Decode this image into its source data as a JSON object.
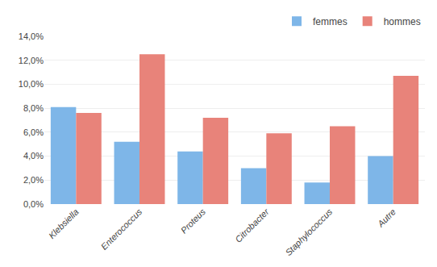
{
  "chart_data": {
    "type": "bar",
    "categories": [
      "Klebsiella",
      "Enterococcus",
      "Proteus",
      "Citrobacter",
      "Staphylococcus",
      "Autre"
    ],
    "series": [
      {
        "name": "femmes",
        "color": "#7EB6E8",
        "values": [
          0.081,
          0.052,
          0.044,
          0.03,
          0.018,
          0.04
        ]
      },
      {
        "name": "hommes",
        "color": "#E8837A",
        "values": [
          0.076,
          0.125,
          0.072,
          0.059,
          0.065,
          0.107
        ]
      }
    ],
    "ylim": [
      0,
      0.14
    ],
    "yticks": [
      {
        "value": 0.0,
        "label": "0,0%"
      },
      {
        "value": 0.02,
        "label": "2,0%"
      },
      {
        "value": 0.04,
        "label": "4,0%"
      },
      {
        "value": 0.06,
        "label": "6,0%"
      },
      {
        "value": 0.08,
        "label": "8,0%"
      },
      {
        "value": 0.1,
        "label": "10,0%"
      },
      {
        "value": 0.12,
        "label": "12,0%"
      },
      {
        "value": 0.14,
        "label": "14,0%"
      }
    ],
    "grid": true,
    "legend": "upper right"
  }
}
